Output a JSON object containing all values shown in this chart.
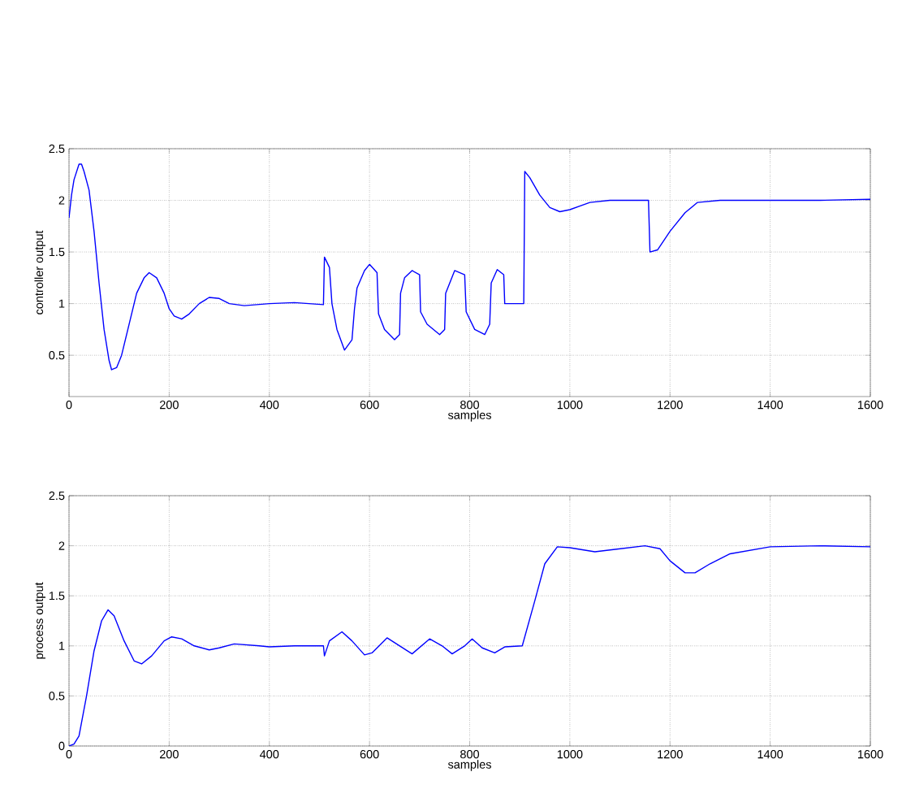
{
  "chart_data": [
    {
      "type": "line",
      "xlabel": "samples",
      "ylabel": "controller output",
      "xlim": [
        0,
        1600
      ],
      "ylim": [
        0.1,
        2.5
      ],
      "xticks": [
        0,
        200,
        400,
        600,
        800,
        1000,
        1200,
        1400,
        1600
      ],
      "yticks": [
        0.5,
        1,
        1.5,
        2,
        2.5
      ],
      "grid": true,
      "line_style": "solid",
      "series": [
        {
          "color": "#0000ff",
          "x": [
            0,
            5,
            10,
            20,
            25,
            30,
            40,
            50,
            60,
            70,
            80,
            85,
            95,
            105,
            120,
            135,
            150,
            160,
            175,
            190,
            200,
            210,
            225,
            240,
            260,
            280,
            300,
            320,
            350,
            400,
            450,
            508,
            510,
            520,
            525,
            535,
            550,
            565,
            570,
            575,
            590,
            600,
            615,
            618,
            630,
            650,
            660,
            662,
            670,
            685,
            700,
            702,
            715,
            740,
            750,
            752,
            770,
            790,
            793,
            810,
            830,
            840,
            843,
            855,
            868,
            870,
            908,
            910,
            920,
            940,
            960,
            980,
            1000,
            1040,
            1080,
            1157,
            1160,
            1175,
            1200,
            1230,
            1255,
            1300,
            1400,
            1500,
            1600
          ],
          "values": [
            1.83,
            2.05,
            2.2,
            2.35,
            2.35,
            2.28,
            2.1,
            1.7,
            1.2,
            0.75,
            0.45,
            0.36,
            0.38,
            0.5,
            0.8,
            1.1,
            1.25,
            1.3,
            1.25,
            1.1,
            0.95,
            0.88,
            0.85,
            0.9,
            1.0,
            1.06,
            1.05,
            1.0,
            0.98,
            1.0,
            1.01,
            0.99,
            1.45,
            1.35,
            1.0,
            0.75,
            0.55,
            0.65,
            0.95,
            1.15,
            1.32,
            1.38,
            1.3,
            0.9,
            0.75,
            0.65,
            0.7,
            1.1,
            1.25,
            1.32,
            1.28,
            0.92,
            0.8,
            0.7,
            0.75,
            1.1,
            1.32,
            1.28,
            0.92,
            0.75,
            0.7,
            0.8,
            1.2,
            1.33,
            1.28,
            1.0,
            1.0,
            2.28,
            2.22,
            2.05,
            1.93,
            1.89,
            1.91,
            1.98,
            2.0,
            2.0,
            1.5,
            1.52,
            1.7,
            1.88,
            1.98,
            2.0,
            2.0,
            2.0,
            2.01
          ]
        }
      ]
    },
    {
      "type": "line",
      "xlabel": "samples",
      "ylabel": "process output",
      "xlim": [
        0,
        1600
      ],
      "ylim": [
        0,
        2.5
      ],
      "xticks": [
        0,
        200,
        400,
        600,
        800,
        1000,
        1200,
        1400,
        1600
      ],
      "yticks": [
        0,
        0.5,
        1,
        1.5,
        2,
        2.5
      ],
      "grid": true,
      "line_style": "solid",
      "series": [
        {
          "color": "#0000ff",
          "x": [
            0,
            10,
            20,
            35,
            50,
            65,
            78,
            90,
            110,
            130,
            145,
            165,
            190,
            205,
            225,
            250,
            280,
            300,
            330,
            380,
            400,
            450,
            508,
            510,
            520,
            545,
            565,
            590,
            605,
            635,
            660,
            685,
            720,
            745,
            765,
            790,
            805,
            825,
            850,
            870,
            905,
            930,
            950,
            975,
            1000,
            1050,
            1100,
            1150,
            1180,
            1200,
            1230,
            1250,
            1280,
            1320,
            1400,
            1500,
            1600
          ],
          "values": [
            0,
            0.02,
            0.1,
            0.5,
            0.95,
            1.25,
            1.36,
            1.3,
            1.05,
            0.85,
            0.82,
            0.9,
            1.05,
            1.09,
            1.07,
            1.0,
            0.96,
            0.98,
            1.02,
            1.0,
            0.99,
            1.0,
            1.0,
            0.9,
            1.05,
            1.14,
            1.05,
            0.91,
            0.93,
            1.08,
            1.0,
            0.92,
            1.07,
            1.0,
            0.92,
            1.0,
            1.07,
            0.98,
            0.93,
            0.99,
            1.0,
            1.45,
            1.82,
            1.99,
            1.98,
            1.94,
            1.97,
            2.0,
            1.97,
            1.85,
            1.73,
            1.73,
            1.82,
            1.92,
            1.99,
            2.0,
            1.99
          ]
        }
      ]
    }
  ]
}
